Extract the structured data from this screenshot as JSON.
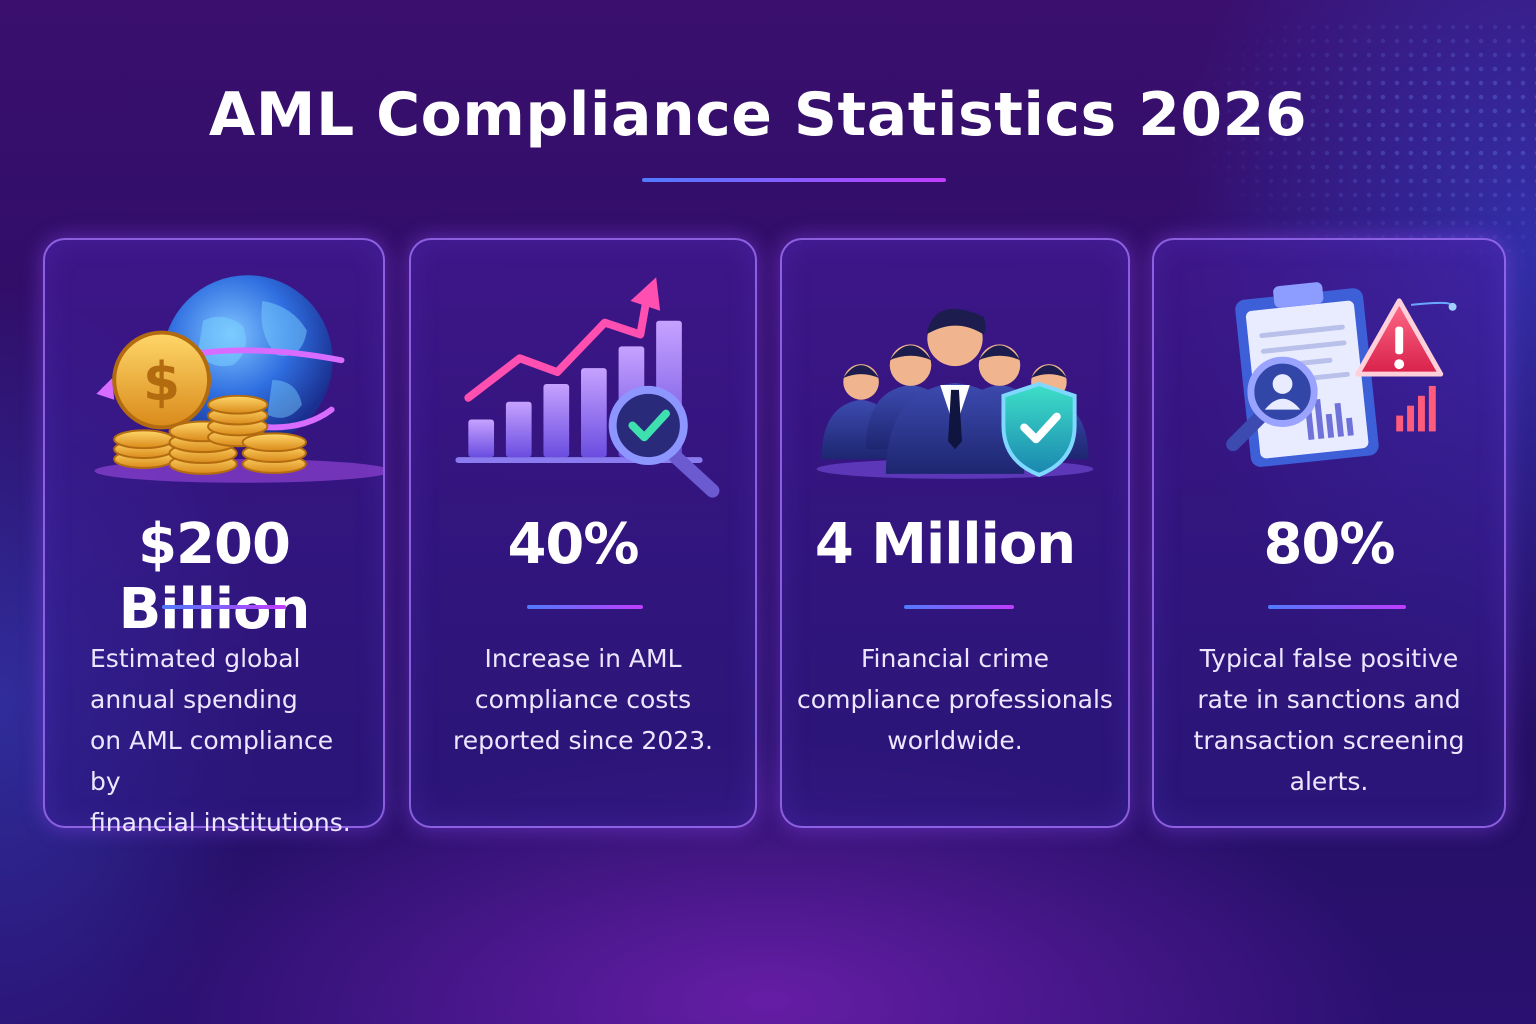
{
  "title": "AML Compliance Statistics 2026",
  "colors": {
    "accent_blue": "#4f7bff",
    "accent_magenta": "#c13cff",
    "card_border": "#aa78ff"
  },
  "cards": [
    {
      "value": "$200 Billion",
      "description_lines": [
        "Estimated global",
        "annual spending",
        "on AML compliance by",
        "financial institutions."
      ],
      "icon": "globe-coins-icon"
    },
    {
      "value": "40%",
      "description_lines": [
        "Increase in AML",
        "compliance costs",
        "reported since 2023."
      ],
      "icon": "rising-chart-magnifier-icon"
    },
    {
      "value": "4 Million",
      "description_lines": [
        "Financial crime",
        "compliance professionals",
        "worldwide."
      ],
      "icon": "professionals-shield-icon"
    },
    {
      "value": "80%",
      "description_lines": [
        "Typical false positive",
        "rate in sanctions and",
        "transaction screening",
        "alerts."
      ],
      "icon": "clipboard-alert-icon"
    }
  ]
}
